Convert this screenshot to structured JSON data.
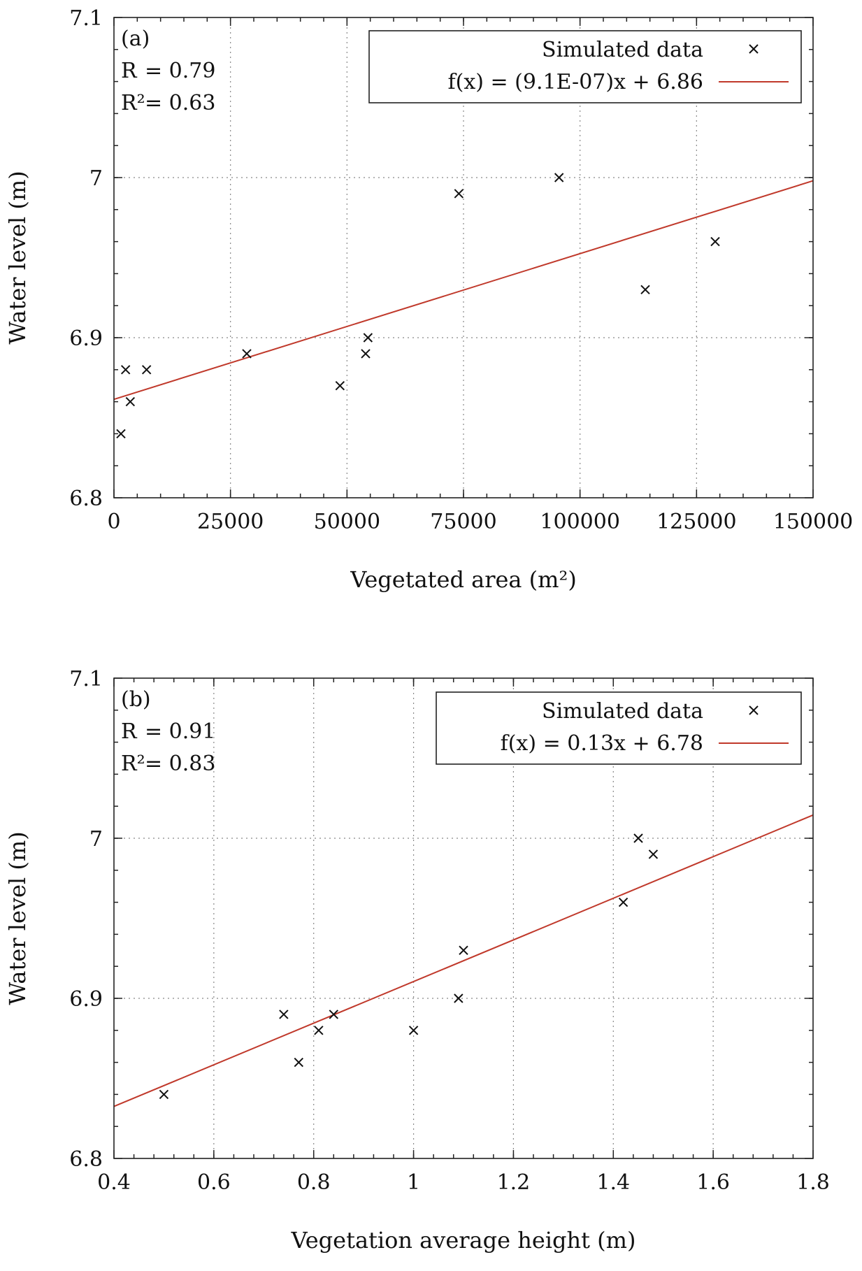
{
  "chart_data": [
    {
      "type": "scatter",
      "panel_label": "(a)",
      "stats": {
        "r_label": "R",
        "r_value": "= 0.79",
        "r2_label": "R²",
        "r2_value": "= 0.63"
      },
      "xlabel": "Vegetated area (m²)",
      "ylabel": "Water level (m)",
      "xlim": [
        0,
        150000
      ],
      "ylim": [
        6.8,
        7.1
      ],
      "xticks": [
        0,
        25000,
        50000,
        75000,
        100000,
        125000,
        150000
      ],
      "xtick_labels": [
        "0",
        "25000",
        "50000",
        "75000",
        "100000",
        "125000",
        "150000"
      ],
      "yticks": [
        6.8,
        6.9,
        7.0,
        7.1
      ],
      "ytick_labels": [
        "6.8",
        "6.9",
        "7",
        "7.1"
      ],
      "minor_x_step": 5000,
      "minor_y_step": 0.02,
      "series": [
        {
          "name": "Simulated data",
          "points": [
            [
              1500,
              6.84
            ],
            [
              2500,
              6.88
            ],
            [
              3500,
              6.86
            ],
            [
              7000,
              6.88
            ],
            [
              28500,
              6.89
            ],
            [
              48500,
              6.87
            ],
            [
              54000,
              6.89
            ],
            [
              54500,
              6.9
            ],
            [
              74000,
              6.99
            ],
            [
              95500,
              7.0
            ],
            [
              114000,
              6.93
            ],
            [
              129000,
              6.96
            ]
          ]
        }
      ],
      "fit": {
        "label": "f(x) = (9.1E-07)x + 6.86",
        "slope": 9.1e-07,
        "intercept": 6.8615
      }
    },
    {
      "type": "scatter",
      "panel_label": "(b)",
      "stats": {
        "r_label": "R",
        "r_value": "= 0.91",
        "r2_label": "R²",
        "r2_value": "= 0.83"
      },
      "xlabel": "Vegetation average height (m)",
      "ylabel": "Water level (m)",
      "xlim": [
        0.4,
        1.8
      ],
      "ylim": [
        6.8,
        7.1
      ],
      "xticks": [
        0.4,
        0.6,
        0.8,
        1.0,
        1.2,
        1.4,
        1.6,
        1.8
      ],
      "xtick_labels": [
        "0.4",
        "0.6",
        "0.8",
        "1",
        "1.2",
        "1.4",
        "1.6",
        "1.8"
      ],
      "yticks": [
        6.8,
        6.9,
        7.0,
        7.1
      ],
      "ytick_labels": [
        "6.8",
        "6.9",
        "7",
        "7.1"
      ],
      "minor_x_step": 0.04,
      "minor_y_step": 0.02,
      "series": [
        {
          "name": "Simulated data",
          "points": [
            [
              0.5,
              6.84
            ],
            [
              0.74,
              6.89
            ],
            [
              0.77,
              6.86
            ],
            [
              0.81,
              6.88
            ],
            [
              0.84,
              6.89
            ],
            [
              1.0,
              6.88
            ],
            [
              1.09,
              6.9
            ],
            [
              1.1,
              6.93
            ],
            [
              1.42,
              6.96
            ],
            [
              1.45,
              7.0
            ],
            [
              1.48,
              6.99
            ]
          ]
        }
      ],
      "fit": {
        "label": "f(x) = 0.13x + 6.78",
        "slope": 0.13,
        "intercept": 6.7805
      }
    }
  ]
}
